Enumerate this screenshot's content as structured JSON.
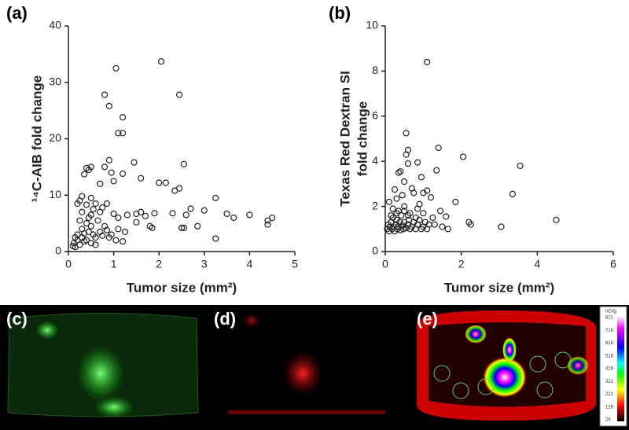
{
  "chart_data": [
    {
      "type": "scatter",
      "label": "(a)",
      "xlabel": "Tumor size (mm²)",
      "ylabel": "¹⁴C-AIB fold change",
      "xlim": [
        0,
        5
      ],
      "xticks": [
        0,
        1,
        2,
        3,
        4,
        5
      ],
      "ylim": [
        0,
        40
      ],
      "yticks": [
        0,
        10,
        20,
        30,
        40
      ],
      "color": "#222",
      "x": [
        1.05,
        2.05,
        0.8,
        2.45,
        0.9,
        1.2,
        1.1,
        1.2,
        0.4,
        0.5,
        0.45,
        0.35,
        0.9,
        0.8,
        1.45,
        2.55,
        0.95,
        2.0,
        2.15,
        1.2,
        1.6,
        2.45,
        2.35,
        0.7,
        1.0,
        3.25,
        0.3,
        0.2,
        0.25,
        0.4,
        0.5,
        0.6,
        0.7,
        0.75,
        0.85,
        1.0,
        1.1,
        1.3,
        1.5,
        1.6,
        1.7,
        1.9,
        2.3,
        2.6,
        2.7,
        3.0,
        3.5,
        3.65,
        4.0,
        4.4,
        4.5,
        4.4,
        2.5,
        2.55,
        2.85,
        3.25,
        1.8,
        1.85,
        1.1,
        1.25,
        1.5,
        1.05,
        1.2,
        0.9,
        0.1,
        0.12,
        0.15,
        0.2,
        0.2,
        0.25,
        0.3,
        0.3,
        0.35,
        0.4,
        0.4,
        0.45,
        0.5,
        0.5,
        0.55,
        0.55,
        0.6,
        0.65,
        0.7,
        0.75,
        0.8,
        0.85,
        0.95,
        0.6,
        0.15,
        0.35,
        0.45,
        0.25,
        0.3,
        0.5
      ],
      "values": [
        32.5,
        33.7,
        27.8,
        27.8,
        25.8,
        23.8,
        21,
        21,
        14.8,
        15,
        14.5,
        13.7,
        16.2,
        15,
        15.8,
        15.5,
        14,
        12.2,
        12.2,
        13.8,
        13,
        11.2,
        10.8,
        12,
        12.5,
        9.5,
        9.8,
        8.5,
        9,
        8.3,
        9.5,
        8.5,
        7,
        7.8,
        8.5,
        6.7,
        6,
        6.5,
        6.7,
        7,
        6.3,
        6.8,
        6.8,
        6.5,
        7.6,
        7.3,
        6.7,
        6,
        6.5,
        5.5,
        6,
        4.8,
        4.2,
        4.2,
        4.5,
        2.3,
        4.5,
        4.2,
        4,
        3.5,
        5.2,
        2,
        1.8,
        2.5,
        1,
        1.5,
        2.5,
        2,
        3,
        1.2,
        2.5,
        4,
        3.2,
        5,
        2,
        6,
        4.5,
        1.5,
        7.5,
        3,
        2.5,
        5.5,
        3.5,
        2.8,
        4.5,
        3.8,
        3,
        1.2,
        0.8,
        1.8,
        3.5,
        5.5,
        7,
        6.5
      ]
    },
    {
      "type": "scatter",
      "label": "(b)",
      "xlabel": "Tumor size (mm²)",
      "ylabel": [
        "Texas Red Dextran SI",
        "fold change"
      ],
      "xlim": [
        0,
        6
      ],
      "xticks": [
        0,
        2,
        4,
        6
      ],
      "ylim": [
        0,
        10
      ],
      "yticks": [
        0,
        2,
        4,
        6,
        8,
        10
      ],
      "color": "#222",
      "x": [
        1.1,
        0.55,
        0.6,
        0.55,
        1.4,
        2.05,
        3.55,
        0.6,
        0.85,
        0.4,
        0.35,
        1.35,
        0.5,
        0.95,
        1.0,
        1.1,
        3.35,
        0.25,
        0.3,
        0.45,
        0.7,
        0.75,
        1.2,
        1.85,
        0.1,
        0.2,
        0.35,
        0.5,
        0.65,
        0.85,
        0.9,
        1.25,
        1.45,
        1.6,
        2.2,
        2.25,
        3.05,
        4.5,
        1.5,
        1.65,
        1.3,
        0.05,
        0.08,
        0.1,
        0.12,
        0.15,
        0.18,
        0.2,
        0.22,
        0.25,
        0.28,
        0.3,
        0.32,
        0.35,
        0.38,
        0.4,
        0.42,
        0.45,
        0.48,
        0.5,
        0.55,
        0.6,
        0.62,
        0.65,
        0.7,
        0.75,
        0.8,
        0.85,
        0.9,
        0.95,
        1.0,
        1.05,
        1.1,
        1.15,
        0.3,
        0.6,
        0.8,
        1.0,
        0.15,
        0.5
      ],
      "values": [
        8.4,
        5.25,
        4.5,
        4.3,
        4.6,
        4.2,
        3.8,
        3.9,
        3.95,
        3.55,
        3.5,
        3.6,
        3.1,
        3.3,
        2.6,
        2.7,
        2.55,
        2.75,
        2.35,
        2.5,
        2.8,
        2.6,
        2.4,
        2.2,
        2.2,
        1.9,
        1.8,
        2.0,
        1.7,
        1.9,
        2.1,
        1.5,
        1.8,
        1.55,
        1.3,
        1.2,
        1.1,
        1.4,
        1.1,
        1.0,
        1.2,
        1.0,
        1.2,
        0.9,
        1.1,
        1.3,
        1.0,
        1.5,
        1.1,
        0.9,
        1.2,
        1.4,
        1.0,
        1.1,
        1.3,
        0.95,
        1.6,
        1.15,
        1.0,
        1.3,
        1.05,
        1.2,
        1.4,
        1.0,
        1.1,
        1.3,
        1.0,
        1.2,
        1.4,
        1.0,
        1.1,
        1.3,
        1.0,
        1.2,
        1.7,
        1.6,
        1.5,
        1.7,
        1.6,
        1.8
      ]
    }
  ],
  "images": [
    {
      "label": "(c)"
    },
    {
      "label": "(d)"
    },
    {
      "label": "(e)"
    }
  ],
  "colorbar": {
    "title": "nCi/g",
    "ticks": [
      821,
      716,
      616,
      518,
      419,
      322,
      221,
      126,
      26
    ]
  }
}
